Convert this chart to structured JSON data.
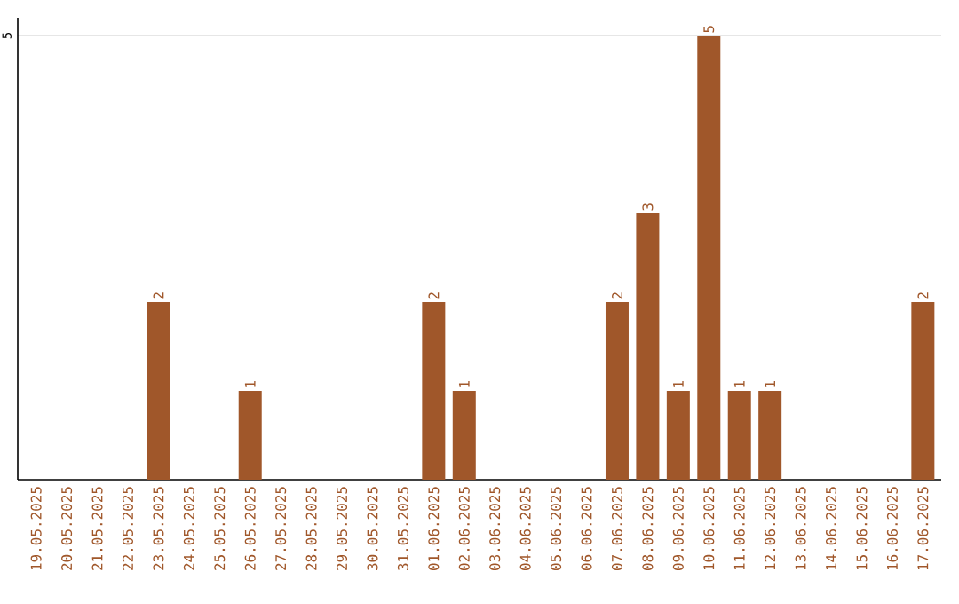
{
  "chart_data": {
    "type": "bar",
    "categories": [
      "19.05.2025",
      "20.05.2025",
      "21.05.2025",
      "22.05.2025",
      "23.05.2025",
      "24.05.2025",
      "25.05.2025",
      "26.05.2025",
      "27.05.2025",
      "28.05.2025",
      "29.05.2025",
      "30.05.2025",
      "31.05.2025",
      "01.06.2025",
      "02.06.2025",
      "03.06.2025",
      "04.06.2025",
      "05.06.2025",
      "06.06.2025",
      "07.06.2025",
      "08.06.2025",
      "09.06.2025",
      "10.06.2025",
      "11.06.2025",
      "12.06.2025",
      "13.06.2025",
      "14.06.2025",
      "15.06.2025",
      "16.06.2025",
      "17.06.2025"
    ],
    "values": [
      0,
      0,
      0,
      0,
      2,
      0,
      0,
      1,
      0,
      0,
      0,
      0,
      0,
      2,
      1,
      0,
      0,
      0,
      0,
      2,
      3,
      1,
      5,
      1,
      1,
      0,
      0,
      0,
      0,
      2
    ],
    "value_labels": [
      null,
      null,
      null,
      null,
      "2",
      null,
      null,
      "1",
      null,
      null,
      null,
      null,
      null,
      "2",
      "1",
      null,
      null,
      null,
      null,
      "2",
      "3",
      "1",
      "5",
      "1",
      "1",
      null,
      null,
      null,
      null,
      "2"
    ],
    "color": "#a0572a",
    "ylim": [
      0,
      5.2
    ],
    "yticks": [
      5
    ],
    "grid": "y"
  }
}
